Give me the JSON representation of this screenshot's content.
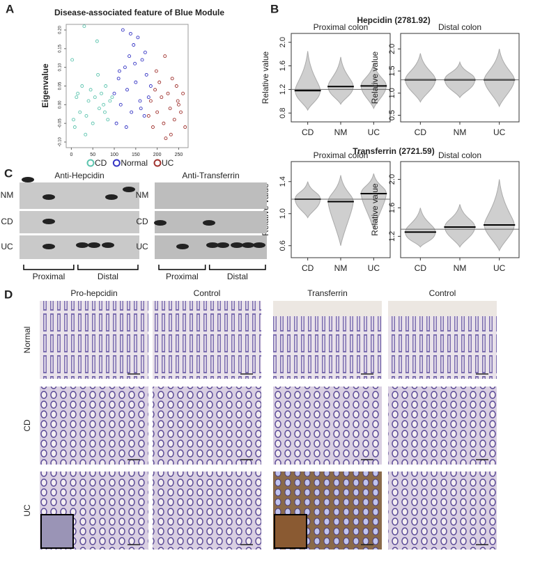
{
  "panel_a": {
    "label": "A",
    "title": "Disease-associated feature of Blue Module",
    "y_label": "Eigenvalue",
    "xlim": [
      -12,
      272
    ],
    "ylim": [
      -0.115,
      0.215
    ],
    "xticks": [
      0,
      50,
      100,
      150,
      200,
      250
    ],
    "yticks": [
      {
        "value": -0.1,
        "label": "-0.10"
      },
      -0.05,
      {
        "value": 0,
        "label": "0.00"
      },
      0.05,
      {
        "value": 0.1,
        "label": "0.10"
      },
      0.15,
      {
        "value": 0.2,
        "label": "0.20"
      }
    ],
    "series": [
      {
        "name": "CD",
        "color": "#5cc4ae",
        "x": [
          2,
          8,
          12,
          15,
          20,
          25,
          30,
          35,
          40,
          45,
          50,
          55,
          60,
          65,
          70,
          75,
          80,
          85,
          90,
          95,
          5,
          33,
          62,
          78
        ],
        "y": [
          0.12,
          -0.06,
          0.02,
          0.03,
          -0.02,
          0.05,
          0.21,
          -0.03,
          0.01,
          0.04,
          -0.05,
          0.02,
          0.17,
          -0.01,
          0.03,
          0,
          0.05,
          -0.04,
          0.01,
          0.02,
          -0.04,
          -0.08,
          0.08,
          -0.02
        ]
      },
      {
        "name": "Normal",
        "color": "#3535c4",
        "x": [
          100,
          105,
          110,
          115,
          120,
          125,
          130,
          135,
          140,
          145,
          150,
          155,
          160,
          165,
          170,
          175,
          180,
          185,
          112,
          138,
          148,
          128,
          162,
          172
        ],
        "y": [
          0.03,
          -0.05,
          0.07,
          0,
          0.2,
          0.1,
          0.04,
          0.13,
          -0.02,
          0.16,
          0.06,
          0.18,
          0.01,
          0.12,
          -0.03,
          0.08,
          0.02,
          0.05,
          0.09,
          0.19,
          0.11,
          -0.06,
          -0.01,
          0.14
        ]
      },
      {
        "name": "UC",
        "color": "#a0332f",
        "x": [
          180,
          185,
          190,
          195,
          200,
          205,
          210,
          215,
          220,
          225,
          230,
          235,
          240,
          245,
          250,
          255,
          260,
          265,
          198,
          218,
          232,
          248
        ],
        "y": [
          -0.03,
          0.01,
          -0.06,
          0.04,
          -0.02,
          0.06,
          0.02,
          -0.05,
          -0.09,
          0.03,
          -0.01,
          0.07,
          -0.04,
          0.05,
          0,
          -0.02,
          0.03,
          -0.06,
          0.09,
          0.13,
          -0.08,
          0.01
        ]
      }
    ]
  },
  "panel_b": {
    "label": "B",
    "groups": [
      {
        "title": "Hepcidin (2781.92)",
        "plots": [
          {
            "title": "Proximal colon",
            "y_label": "Relative value",
            "categories": [
              "CD",
              "NM",
              "UC"
            ],
            "ylim": [
              0.65,
              2.15
            ],
            "yticks": [
              0.8,
              1.2,
              1.6,
              {
                "value": 2,
                "label": "2.0"
              }
            ],
            "overall": 1.2,
            "means": [
              1.18,
              1.25,
              1.26
            ],
            "ranges": [
              [
                0.85,
                1.85
              ],
              [
                0.95,
                1.75
              ],
              [
                0.88,
                1.65
              ]
            ]
          },
          {
            "title": "Distal colon",
            "y_label": "Relative value",
            "categories": [
              "CD",
              "NM",
              "UC"
            ],
            "ylim": [
              0.35,
              2.35
            ],
            "yticks": [
              0.5,
              {
                "value": 1,
                "label": "1.0"
              },
              1.5,
              {
                "value": 2,
                "label": "2.0"
              }
            ],
            "overall": 1.3,
            "means": [
              1.3,
              1.3,
              1.3
            ],
            "ranges": [
              [
                0.8,
                1.9
              ],
              [
                0.9,
                1.7
              ],
              [
                0.7,
                2.0
              ]
            ]
          }
        ]
      },
      {
        "title": "Transferrin (2721.59)",
        "plots": [
          {
            "title": "Proximal colon",
            "y_label": "Relative value",
            "categories": [
              "CD",
              "NM",
              "UC"
            ],
            "ylim": [
              0.45,
              1.65
            ],
            "yticks": [
              0.6,
              {
                "value": 1,
                "label": "1.0"
              },
              1.4
            ],
            "overall": 1.18,
            "means": [
              1.18,
              1.15,
              1.25
            ],
            "ranges": [
              [
                0.95,
                1.4
              ],
              [
                0.6,
                1.48
              ],
              [
                0.8,
                1.5
              ]
            ]
          },
          {
            "title": "Distal colon",
            "y_label": "Relative value",
            "categories": [
              "CD",
              "NM",
              "UC"
            ],
            "ylim": [
              0.9,
              2.25
            ],
            "yticks": [
              1.2,
              1.6,
              {
                "value": 2,
                "label": "2.0"
              }
            ],
            "overall": 1.3,
            "means": [
              1.26,
              1.33,
              1.36
            ],
            "ranges": [
              [
                1.05,
                1.6
              ],
              [
                1.05,
                1.65
              ],
              [
                1.0,
                2.0
              ]
            ]
          }
        ]
      }
    ]
  },
  "panel_c": {
    "label": "C",
    "blots": [
      {
        "title": "Anti-Hepcidin",
        "rows": [
          "NM",
          "CD",
          "UC"
        ],
        "regions": [
          "Proximal",
          "Distal"
        ]
      },
      {
        "title": "Anti-Transferrin",
        "rows": [
          "NM",
          "CD",
          "UC"
        ],
        "regions": [
          "Proximal",
          "Distal"
        ]
      }
    ]
  },
  "panel_d": {
    "label": "D",
    "columns": [
      "Pro-hepcidin",
      "Control",
      "Transferrin",
      "Control"
    ],
    "rows": [
      "Normal",
      "CD",
      "UC"
    ]
  }
}
